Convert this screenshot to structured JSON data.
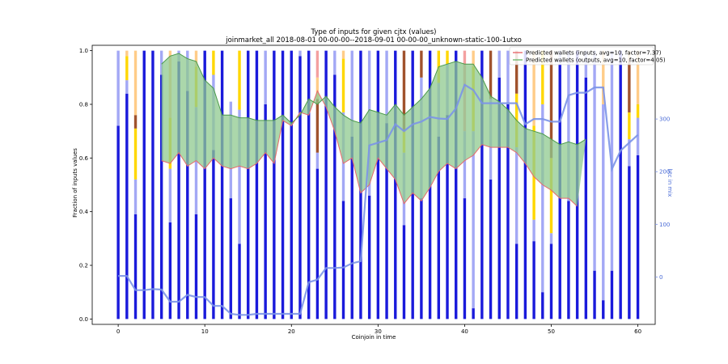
{
  "chart_data": {
    "type": "bar",
    "title_line1": "Type of inputs for given cjtx (values)",
    "title_line2": "joinmarket_all 2018-08-01 00-00-00--2018-09-01 00-00-00_unknown-static-100-1utxo",
    "xlabel": "Coinjoin in time",
    "ylabel": "Fraction of inputs values",
    "y2label": "btc in mix",
    "xlim": [
      -3,
      62
    ],
    "ylim": [
      -0.02,
      1.02
    ],
    "y2lim": [
      -90,
      440
    ],
    "xticks": [
      0,
      10,
      20,
      30,
      40,
      50,
      60
    ],
    "yticks": [
      0.0,
      0.2,
      0.4,
      0.6,
      0.8,
      1.0
    ],
    "y2ticks": [
      0,
      100,
      200,
      300
    ],
    "legend": [
      {
        "label": "Predicted wallets (inputs, avg=10, factor=7.37)",
        "color": "#e8696b"
      },
      {
        "label": "Predicted wallets (outputs, avg=10, factor=4.05)",
        "color": "#6fba6f"
      }
    ],
    "colors": {
      "fresh": "#1a1adb",
      "remix": "#a3a8f5",
      "yellow": "#ffd700",
      "orange": "#ffcc88",
      "brown": "#a0522d",
      "pink": "#f4a0a0",
      "btc_line": "#7b93e8",
      "fill": "#8fc98f",
      "inputs_line": "#e8696b",
      "outputs_line": "#4a9a4a"
    },
    "bars": [
      {
        "x": 0,
        "fresh": 0.72,
        "remix": 0.28,
        "yellow": 0,
        "brown": 0,
        "orange": 0,
        "pink": 0
      },
      {
        "x": 1,
        "fresh": 0.84,
        "remix": 0.05,
        "yellow": 0.09,
        "brown": 0,
        "orange": 0.02,
        "pink": 0
      },
      {
        "x": 2,
        "fresh": 0.39,
        "remix": 0.13,
        "yellow": 0.19,
        "brown": 0.05,
        "orange": 0.24,
        "pink": 0
      },
      {
        "x": 3,
        "fresh": 1.0,
        "remix": 0,
        "yellow": 0,
        "brown": 0,
        "orange": 0,
        "pink": 0
      },
      {
        "x": 4,
        "fresh": 1.0,
        "remix": 0,
        "yellow": 0,
        "brown": 0,
        "orange": 0,
        "pink": 0
      },
      {
        "x": 5,
        "fresh": 0.91,
        "remix": 0.09,
        "yellow": 0,
        "brown": 0,
        "orange": 0,
        "pink": 0
      },
      {
        "x": 6,
        "fresh": 0.36,
        "remix": 0.2,
        "yellow": 0.19,
        "brown": 0,
        "orange": 0.25,
        "pink": 0
      },
      {
        "x": 7,
        "fresh": 0.96,
        "remix": 0.04,
        "yellow": 0,
        "brown": 0,
        "orange": 0,
        "pink": 0
      },
      {
        "x": 8,
        "fresh": 0.85,
        "remix": 0.15,
        "yellow": 0,
        "brown": 0,
        "orange": 0,
        "pink": 0
      },
      {
        "x": 9,
        "fresh": 0.39,
        "remix": 0.4,
        "yellow": 0.15,
        "brown": 0,
        "orange": 0.06,
        "pink": 0
      },
      {
        "x": 10,
        "fresh": 1.0,
        "remix": 0,
        "yellow": 0,
        "brown": 0,
        "orange": 0,
        "pink": 0
      },
      {
        "x": 11,
        "fresh": 0.63,
        "remix": 0.28,
        "yellow": 0.09,
        "brown": 0,
        "orange": 0,
        "pink": 0
      },
      {
        "x": 12,
        "fresh": 1.0,
        "remix": 0,
        "yellow": 0,
        "brown": 0,
        "orange": 0,
        "pink": 0
      },
      {
        "x": 13,
        "fresh": 0.45,
        "remix": 0.36,
        "yellow": 0,
        "brown": 0,
        "orange": 0,
        "pink": 0
      },
      {
        "x": 14,
        "fresh": 0.28,
        "remix": 0.5,
        "yellow": 0.22,
        "brown": 0,
        "orange": 0,
        "pink": 0
      },
      {
        "x": 15,
        "fresh": 1.0,
        "remix": 0,
        "yellow": 0,
        "brown": 0,
        "orange": 0,
        "pink": 0
      },
      {
        "x": 16,
        "fresh": 1.0,
        "remix": 0,
        "yellow": 0,
        "brown": 0,
        "orange": 0,
        "pink": 0
      },
      {
        "x": 17,
        "fresh": 0.8,
        "remix": 0.2,
        "yellow": 0,
        "brown": 0,
        "orange": 0,
        "pink": 0
      },
      {
        "x": 18,
        "fresh": 1.0,
        "remix": 0,
        "yellow": 0,
        "brown": 0,
        "orange": 0,
        "pink": 0
      },
      {
        "x": 19,
        "fresh": 1.0,
        "remix": 0,
        "yellow": 0,
        "brown": 0,
        "orange": 0,
        "pink": 0
      },
      {
        "x": 20,
        "fresh": 1.0,
        "remix": 0,
        "yellow": 0,
        "brown": 0,
        "orange": 0,
        "pink": 0
      },
      {
        "x": 21,
        "fresh": 0.98,
        "remix": 0.02,
        "yellow": 0,
        "brown": 0,
        "orange": 0,
        "pink": 0
      },
      {
        "x": 22,
        "fresh": 1.0,
        "remix": 0,
        "yellow": 0,
        "brown": 0,
        "orange": 0,
        "pink": 0
      },
      {
        "x": 23,
        "fresh": 0.56,
        "remix": 0.06,
        "yellow": 0,
        "brown": 0.2,
        "orange": 0.08,
        "pink": 0.1
      },
      {
        "x": 24,
        "fresh": 1.0,
        "remix": 0,
        "yellow": 0,
        "brown": 0,
        "orange": 0,
        "pink": 0
      },
      {
        "x": 25,
        "fresh": 0.91,
        "remix": 0.09,
        "yellow": 0,
        "brown": 0,
        "orange": 0,
        "pink": 0
      },
      {
        "x": 26,
        "fresh": 0.44,
        "remix": 0.33,
        "yellow": 0.2,
        "brown": 0,
        "orange": 0.03,
        "pink": 0
      },
      {
        "x": 27,
        "fresh": 0.68,
        "remix": 0.32,
        "yellow": 0,
        "brown": 0,
        "orange": 0,
        "pink": 0
      },
      {
        "x": 28,
        "fresh": 1.0,
        "remix": 0,
        "yellow": 0,
        "brown": 0,
        "orange": 0,
        "pink": 0
      },
      {
        "x": 29,
        "fresh": 0.46,
        "remix": 0.54,
        "yellow": 0,
        "brown": 0,
        "orange": 0,
        "pink": 0
      },
      {
        "x": 30,
        "fresh": 1.0,
        "remix": 0,
        "yellow": 0,
        "brown": 0,
        "orange": 0,
        "pink": 0
      },
      {
        "x": 31,
        "fresh": 0.73,
        "remix": 0.27,
        "yellow": 0,
        "brown": 0,
        "orange": 0,
        "pink": 0
      },
      {
        "x": 32,
        "fresh": 1.0,
        "remix": 0,
        "yellow": 0,
        "brown": 0,
        "orange": 0,
        "pink": 0
      },
      {
        "x": 33,
        "fresh": 0.35,
        "remix": 0.27,
        "yellow": 0.08,
        "brown": 0.3,
        "orange": 0,
        "pink": 0
      },
      {
        "x": 34,
        "fresh": 1.0,
        "remix": 0,
        "yellow": 0,
        "brown": 0,
        "orange": 0,
        "pink": 0
      },
      {
        "x": 35,
        "fresh": 0.45,
        "remix": 0.45,
        "yellow": 0,
        "brown": 0.1,
        "orange": 0,
        "pink": 0
      },
      {
        "x": 36,
        "fresh": 1.0,
        "remix": 0,
        "yellow": 0,
        "brown": 0,
        "orange": 0,
        "pink": 0
      },
      {
        "x": 37,
        "fresh": 0.68,
        "remix": 0.2,
        "yellow": 0.12,
        "brown": 0,
        "orange": 0,
        "pink": 0
      },
      {
        "x": 38,
        "fresh": 0.76,
        "remix": 0.19,
        "yellow": 0.05,
        "brown": 0,
        "orange": 0,
        "pink": 0
      },
      {
        "x": 39,
        "fresh": 1.0,
        "remix": 0,
        "yellow": 0,
        "brown": 0,
        "orange": 0,
        "pink": 0
      },
      {
        "x": 40,
        "fresh": 0.45,
        "remix": 0.25,
        "yellow": 0,
        "brown": 0,
        "orange": 0,
        "pink": 0.3
      },
      {
        "x": 41,
        "fresh": 0.04,
        "remix": 0.66,
        "yellow": 0.24,
        "brown": 0,
        "orange": 0.06,
        "pink": 0
      },
      {
        "x": 42,
        "fresh": 1.0,
        "remix": 0,
        "yellow": 0,
        "brown": 0,
        "orange": 0,
        "pink": 0
      },
      {
        "x": 43,
        "fresh": 0.52,
        "remix": 0.3,
        "yellow": 0,
        "brown": 0.18,
        "orange": 0,
        "pink": 0
      },
      {
        "x": 44,
        "fresh": 0.9,
        "remix": 0.1,
        "yellow": 0,
        "brown": 0,
        "orange": 0,
        "pink": 0
      },
      {
        "x": 45,
        "fresh": 0.8,
        "remix": 0.2,
        "yellow": 0,
        "brown": 0,
        "orange": 0,
        "pink": 0
      },
      {
        "x": 46,
        "fresh": 0.28,
        "remix": 0.36,
        "yellow": 0.2,
        "brown": 0.16,
        "orange": 0,
        "pink": 0
      },
      {
        "x": 47,
        "fresh": 1.0,
        "remix": 0,
        "yellow": 0,
        "brown": 0,
        "orange": 0,
        "pink": 0
      },
      {
        "x": 48,
        "fresh": 0.29,
        "remix": 0.08,
        "yellow": 0.35,
        "brown": 0,
        "orange": 0.28,
        "pink": 0
      },
      {
        "x": 49,
        "fresh": 0.1,
        "remix": 0.7,
        "yellow": 0.2,
        "brown": 0,
        "orange": 0,
        "pink": 0
      },
      {
        "x": 50,
        "fresh": 0.28,
        "remix": 0.04,
        "yellow": 0.28,
        "brown": 0.4,
        "orange": 0,
        "pink": 0
      },
      {
        "x": 51,
        "fresh": 0.95,
        "remix": 0.05,
        "yellow": 0,
        "brown": 0,
        "orange": 0,
        "pink": 0
      },
      {
        "x": 52,
        "fresh": 0.44,
        "remix": 0.56,
        "yellow": 0,
        "brown": 0,
        "orange": 0,
        "pink": 0
      },
      {
        "x": 53,
        "fresh": 1.0,
        "remix": 0,
        "yellow": 0,
        "brown": 0,
        "orange": 0,
        "pink": 0
      },
      {
        "x": 54,
        "fresh": 0.9,
        "remix": 0.1,
        "yellow": 0,
        "brown": 0,
        "orange": 0,
        "pink": 0
      },
      {
        "x": 55,
        "fresh": 0.18,
        "remix": 0.82,
        "yellow": 0,
        "brown": 0,
        "orange": 0,
        "pink": 0
      },
      {
        "x": 56,
        "fresh": 0.07,
        "remix": 0.73,
        "yellow": 0,
        "brown": 0,
        "orange": 0.2,
        "pink": 0
      },
      {
        "x": 57,
        "fresh": 0.18,
        "remix": 0.82,
        "yellow": 0,
        "brown": 0,
        "orange": 0,
        "pink": 0
      },
      {
        "x": 58,
        "fresh": 1.0,
        "remix": 0,
        "yellow": 0,
        "brown": 0,
        "orange": 0,
        "pink": 0
      },
      {
        "x": 59,
        "fresh": 0.57,
        "remix": 0.1,
        "yellow": 0.1,
        "brown": 0.2,
        "orange": 0.03,
        "pink": 0
      },
      {
        "x": 60,
        "fresh": 0.61,
        "remix": 0.14,
        "yellow": 0.05,
        "brown": 0,
        "orange": 0.2,
        "pink": 0
      }
    ],
    "btc_in_mix": {
      "x": [
        0,
        1,
        2,
        3,
        4,
        5,
        6,
        7,
        8,
        9,
        10,
        11,
        12,
        13,
        14,
        15,
        16,
        17,
        18,
        19,
        20,
        21,
        22,
        23,
        24,
        25,
        26,
        27,
        28,
        29,
        30,
        31,
        32,
        33,
        34,
        35,
        36,
        37,
        38,
        39,
        40,
        41,
        42,
        43,
        44,
        45,
        46,
        47,
        48,
        49,
        50,
        51,
        52,
        53,
        54,
        55,
        56,
        57,
        58,
        59,
        60
      ],
      "y": [
        2,
        2,
        -25,
        -25,
        -23,
        -24,
        -47,
        -47,
        -34,
        -38,
        -38,
        -55,
        -55,
        -70,
        -72,
        -72,
        -70,
        -70,
        -70,
        -70,
        -70,
        -70,
        -10,
        -5,
        17,
        17,
        18,
        26,
        30,
        250,
        255,
        260,
        290,
        277,
        290,
        295,
        304,
        301,
        300,
        320,
        365,
        355,
        330,
        330,
        330,
        330,
        330,
        290,
        300,
        300,
        295,
        295,
        345,
        350,
        350,
        360,
        360,
        205,
        240,
        255,
        270
      ]
    },
    "inputs_wallets": {
      "x": [
        5,
        6,
        7,
        8,
        9,
        10,
        11,
        12,
        13,
        14,
        15,
        16,
        17,
        18,
        19,
        20,
        21,
        22,
        23,
        24,
        25,
        26,
        27,
        28,
        29,
        30,
        31,
        32,
        33,
        34,
        35,
        36,
        37,
        38,
        39,
        40,
        41,
        42,
        43,
        44,
        45,
        46,
        47,
        48,
        49,
        50,
        51,
        52,
        53
      ],
      "y": [
        0.59,
        0.58,
        0.62,
        0.57,
        0.59,
        0.56,
        0.6,
        0.57,
        0.56,
        0.57,
        0.56,
        0.58,
        0.62,
        0.58,
        0.74,
        0.72,
        0.77,
        0.76,
        0.85,
        0.79,
        0.7,
        0.58,
        0.6,
        0.47,
        0.5,
        0.6,
        0.56,
        0.52,
        0.43,
        0.47,
        0.44,
        0.49,
        0.55,
        0.58,
        0.56,
        0.59,
        0.61,
        0.65,
        0.64,
        0.64,
        0.64,
        0.62,
        0.58,
        0.53,
        0.5,
        0.48,
        0.45,
        0.45,
        0.42
      ]
    },
    "outputs_wallets": {
      "x": [
        5,
        6,
        7,
        8,
        9,
        10,
        11,
        12,
        13,
        14,
        15,
        16,
        17,
        18,
        19,
        20,
        21,
        22,
        23,
        24,
        25,
        26,
        27,
        28,
        29,
        30,
        31,
        32,
        33,
        34,
        35,
        36,
        37,
        38,
        39,
        40,
        41,
        42,
        43,
        44,
        45,
        46,
        47,
        48,
        49,
        50,
        51,
        52,
        53,
        54
      ],
      "y": [
        0.95,
        0.98,
        0.99,
        0.97,
        0.96,
        0.89,
        0.86,
        0.76,
        0.76,
        0.75,
        0.75,
        0.74,
        0.74,
        0.74,
        0.76,
        0.73,
        0.76,
        0.82,
        0.8,
        0.83,
        0.79,
        0.76,
        0.74,
        0.73,
        0.78,
        0.77,
        0.76,
        0.8,
        0.76,
        0.79,
        0.82,
        0.86,
        0.94,
        0.95,
        0.96,
        0.95,
        0.95,
        0.9,
        0.83,
        0.81,
        0.78,
        0.74,
        0.71,
        0.7,
        0.69,
        0.67,
        0.65,
        0.66,
        0.65,
        0.67
      ]
    }
  }
}
